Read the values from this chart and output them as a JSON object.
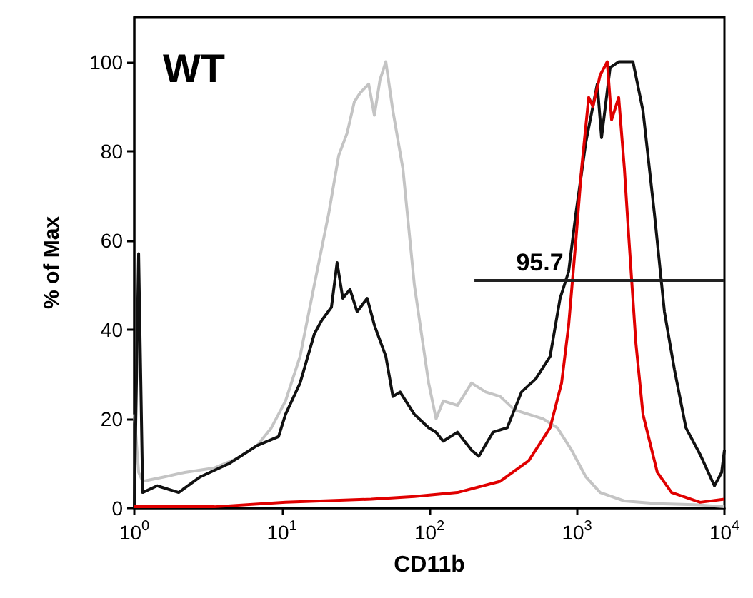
{
  "chart_data": {
    "type": "line",
    "xlabel": "CD11b",
    "ylabel": "% of Max",
    "log": "x",
    "xlim": [
      1,
      10000
    ],
    "ylim": [
      0,
      110
    ],
    "xticks": [
      {
        "value": 1,
        "label": "10$^{0}$"
      },
      {
        "value": 10,
        "label": "10$^{1}$"
      },
      {
        "value": 100,
        "label": "10$^{2}$"
      },
      {
        "value": 1000,
        "label": "10$^{3}$"
      },
      {
        "value": 10000,
        "label": "10$^{4}$"
      }
    ],
    "yticks": [
      0,
      20,
      40,
      60,
      80,
      100
    ],
    "grid": false,
    "marker": "none",
    "line_style": "solid",
    "annotations": [
      "WT",
      {
        "text": "95.7",
        "x": 560,
        "y": 51
      }
    ],
    "series": [
      {
        "color": "#c4c4c4",
        "x": [
          1,
          1.07,
          1.14,
          1.6,
          2.2,
          3.5,
          4.9,
          6.8,
          8.5,
          10.6,
          13.3,
          16.6,
          20.8,
          24.3,
          27.7,
          31,
          33.9,
          38.8,
          42.4,
          46.3,
          50.7,
          56.6,
          66.2,
          79.1,
          98.9,
          111,
          124,
          155,
          193,
          241,
          302,
          377,
          471,
          589,
          736,
          920,
          1150,
          1437,
          2099,
          3508,
          6846,
          10000
        ],
        "values": [
          21,
          8,
          6,
          7,
          8,
          9,
          11,
          14,
          18,
          24,
          34,
          50,
          66,
          79,
          84,
          91,
          93,
          95,
          88,
          96,
          100,
          89,
          76,
          50,
          28,
          20,
          24,
          23,
          28,
          26,
          25,
          22,
          21,
          20,
          18,
          13,
          7,
          3.5,
          1.6,
          1,
          0.7,
          0.3
        ]
      },
      {
        "color": "#111111",
        "x": [
          1,
          1.07,
          1.14,
          1.43,
          2,
          2.8,
          4.4,
          6.8,
          9.5,
          10.6,
          13.3,
          16.6,
          18.6,
          21.7,
          23.7,
          25.9,
          29,
          32.4,
          37.9,
          42.4,
          50.7,
          56.6,
          63.3,
          79.1,
          98.9,
          111,
          124,
          155,
          193,
          216,
          270,
          337,
          421,
          527,
          658,
          769,
          879,
          984,
          1150,
          1374,
          1469,
          1679,
          1920,
          2400,
          2805,
          3352,
          3920,
          4585,
          5480,
          6846,
          8554,
          9570,
          10000
        ],
        "values": [
          0,
          57,
          3.5,
          5,
          3.5,
          7,
          10,
          14,
          16,
          21,
          28,
          39,
          42,
          45,
          55,
          47,
          49,
          44,
          47,
          41,
          34,
          25,
          26,
          21,
          18,
          17,
          15,
          17,
          13,
          11.6,
          17,
          18,
          26,
          29,
          34,
          47,
          53,
          66,
          82,
          95,
          83,
          98.7,
          100,
          100,
          89,
          66,
          44,
          31,
          18,
          12,
          5,
          8,
          13
        ]
      },
      {
        "color": "#e00000",
        "x": [
          1,
          3.5,
          10.6,
          40.5,
          79.1,
          155,
          302,
          471,
          658,
          787,
          879,
          984,
          1075,
          1202,
          1285,
          1437,
          1606,
          1718,
          1920,
          2099,
          2244,
          2510,
          2805,
          3508,
          4383,
          6846,
          10000
        ],
        "values": [
          0.3,
          0.3,
          1.3,
          2,
          2.6,
          3.5,
          6,
          10.6,
          18,
          28,
          41,
          60,
          76,
          92,
          90,
          97,
          100,
          87,
          92,
          76,
          61,
          37,
          21,
          8,
          3.5,
          1.3,
          2
        ]
      },
      {
        "color": "#222222",
        "x": [
          202,
          10000
        ],
        "values": [
          51,
          51
        ]
      }
    ]
  }
}
